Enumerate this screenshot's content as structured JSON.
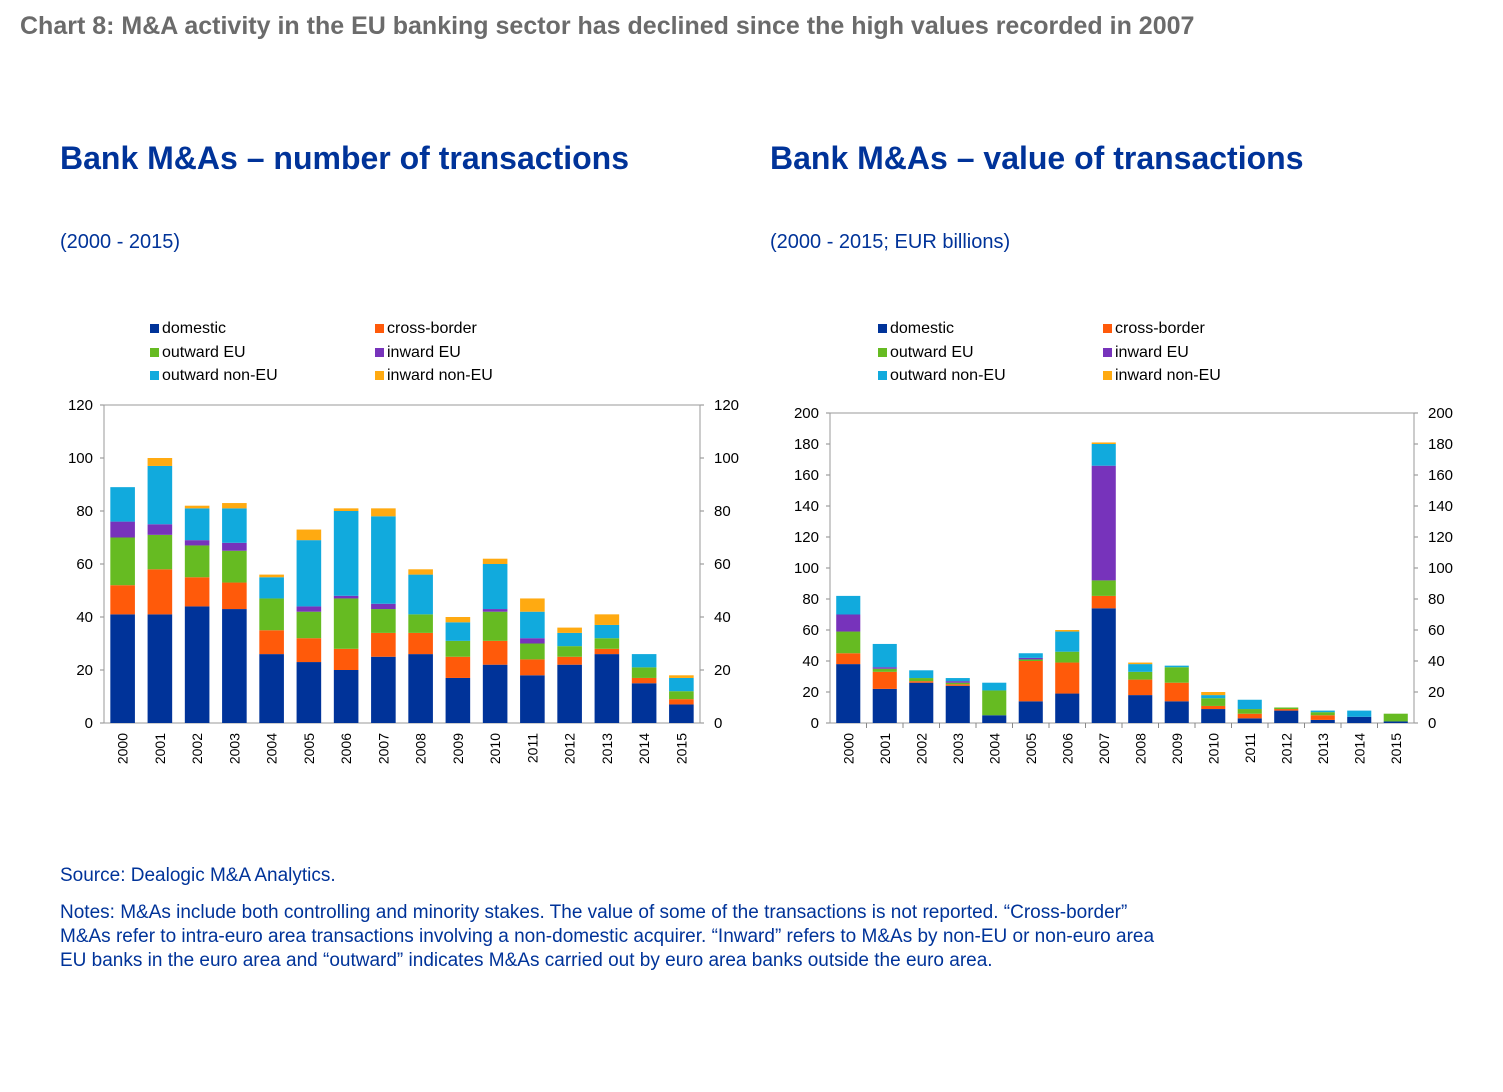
{
  "page_title": "Chart 8: M&A activity in the EU banking sector has declined since the high values recorded in 2007",
  "source": "Source: Dealogic M&A Analytics.",
  "notes": [
    "Notes: M&As include both controlling and minority stakes. The value of some of the transactions is not reported. “Cross-border”",
    "M&As refer to intra-euro area transactions involving a non-domestic acquirer. “Inward” refers to M&As by non-EU or non-euro area",
    "EU banks in the euro area and “outward” indicates M&As carried out by euro area banks outside the euro area."
  ],
  "colors": {
    "domestic": "#003399",
    "cross-border": "#ff5a0a",
    "outward EU": "#66bb22",
    "inward EU": "#7733bb",
    "outward non-EU": "#11aadd",
    "inward non-EU": "#ffaa11"
  },
  "chart_data": [
    {
      "type": "bar",
      "stacked": true,
      "title": "Bank M&As – number of transactions",
      "subtitle": "(2000 - 2015)",
      "categories": [
        "2000",
        "2001",
        "2002",
        "2003",
        "2004",
        "2005",
        "2006",
        "2007",
        "2008",
        "2009",
        "2010",
        "2011",
        "2012",
        "2013",
        "2014",
        "2015"
      ],
      "ylim": [
        0,
        120
      ],
      "yticks": [
        0,
        20,
        40,
        60,
        80,
        100,
        120
      ],
      "legend_position": "top",
      "series": [
        {
          "name": "domestic",
          "values": [
            41,
            41,
            44,
            43,
            26,
            23,
            20,
            25,
            26,
            17,
            22,
            18,
            22,
            26,
            15,
            7
          ]
        },
        {
          "name": "cross-border",
          "values": [
            11,
            17,
            11,
            10,
            9,
            9,
            8,
            9,
            8,
            8,
            9,
            6,
            3,
            2,
            2,
            2
          ]
        },
        {
          "name": "outward EU",
          "values": [
            18,
            13,
            12,
            12,
            12,
            10,
            19,
            9,
            7,
            6,
            11,
            6,
            4,
            4,
            4,
            3
          ]
        },
        {
          "name": "inward EU",
          "values": [
            6,
            4,
            2,
            3,
            0,
            2,
            1,
            2,
            0,
            0,
            1,
            2,
            0,
            0,
            0,
            0
          ]
        },
        {
          "name": "outward non-EU",
          "values": [
            13,
            22,
            12,
            13,
            8,
            25,
            32,
            33,
            15,
            7,
            17,
            10,
            5,
            5,
            5,
            5
          ]
        },
        {
          "name": "inward non-EU",
          "values": [
            0,
            3,
            1,
            2,
            1,
            4,
            1,
            3,
            2,
            2,
            2,
            5,
            2,
            4,
            0,
            1
          ]
        }
      ]
    },
    {
      "type": "bar",
      "stacked": true,
      "title": "Bank M&As – value of transactions",
      "subtitle": "(2000 - 2015; EUR billions)",
      "categories": [
        "2000",
        "2001",
        "2002",
        "2003",
        "2004",
        "2005",
        "2006",
        "2007",
        "2008",
        "2009",
        "2010",
        "2011",
        "2012",
        "2013",
        "2014",
        "2015"
      ],
      "ylim": [
        0,
        200
      ],
      "yticks": [
        0,
        20,
        40,
        60,
        80,
        100,
        120,
        140,
        160,
        180,
        200
      ],
      "legend_position": "top",
      "series": [
        {
          "name": "domestic",
          "values": [
            38,
            22,
            26,
            24,
            5,
            14,
            19,
            74,
            18,
            14,
            9,
            3,
            8,
            2,
            4,
            1
          ]
        },
        {
          "name": "cross-border",
          "values": [
            7,
            11,
            1,
            1,
            0,
            26,
            20,
            8,
            10,
            12,
            2,
            3,
            1,
            3,
            0,
            0
          ]
        },
        {
          "name": "outward EU",
          "values": [
            14,
            2,
            2,
            1,
            16,
            1,
            7,
            10,
            5,
            10,
            5,
            3,
            1,
            2,
            0,
            5
          ]
        },
        {
          "name": "inward EU",
          "values": [
            11,
            1,
            0,
            1,
            0,
            1,
            0,
            74,
            0,
            0,
            0,
            0,
            0,
            0,
            0,
            0
          ]
        },
        {
          "name": "outward non-EU",
          "values": [
            12,
            15,
            5,
            2,
            5,
            3,
            13,
            14,
            5,
            1,
            2,
            6,
            0,
            1,
            4,
            0
          ]
        },
        {
          "name": "inward non-EU",
          "values": [
            0,
            0,
            0,
            0,
            0,
            0,
            1,
            1,
            1,
            0,
            2,
            0,
            0,
            0,
            0,
            0
          ]
        }
      ]
    }
  ]
}
